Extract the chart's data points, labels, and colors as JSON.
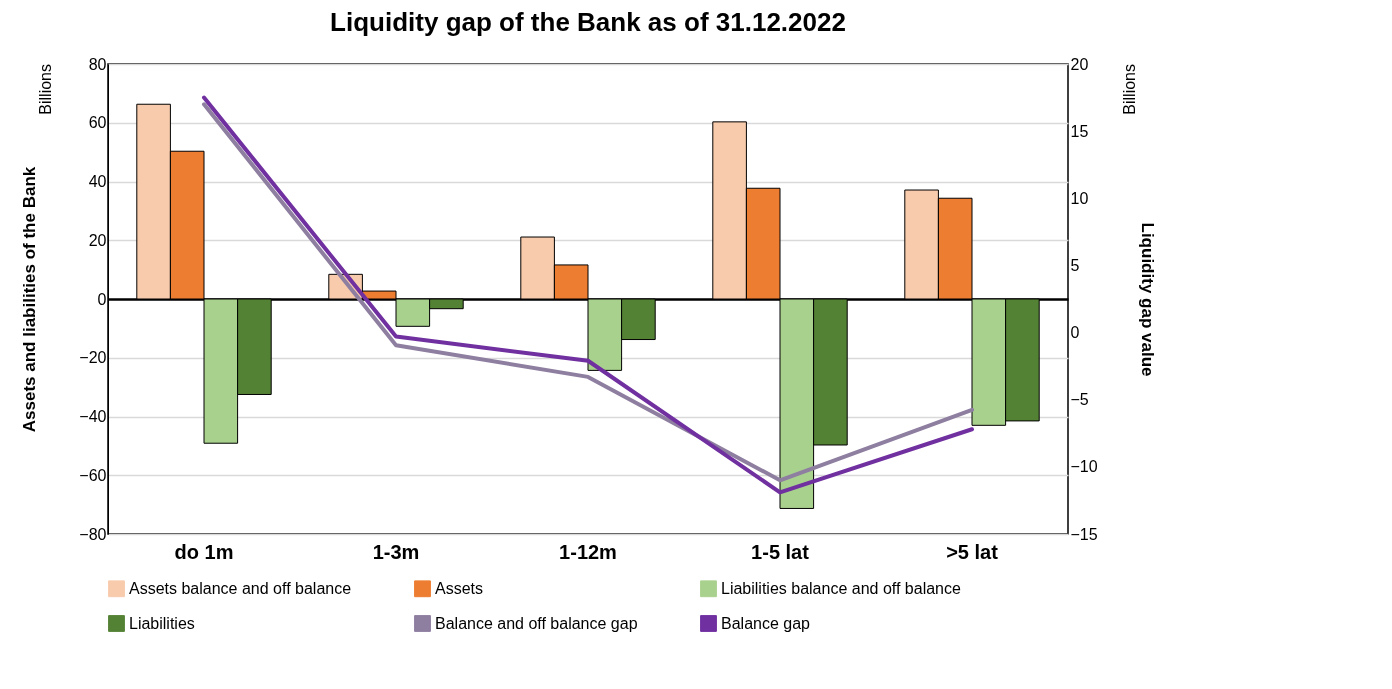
{
  "chart_data": {
    "type": "bar",
    "title": "Liquidity gap of the Bank as of 31.12.2022",
    "ylabel": "Assets and liabilities of the Bank",
    "y2label": "Liquidity gap value",
    "annotations": [
      "Billions",
      "Billions"
    ],
    "categories": [
      "do 1m",
      "1-3m",
      "1-12m",
      "1-5 lat",
      ">5 lat"
    ],
    "series": [
      {
        "name": "Assets balance and off balance",
        "color": "#f8cbad",
        "values": [
          66.3,
          8.4,
          21.1,
          60.3,
          37.1
        ]
      },
      {
        "name": "Assets",
        "color": "#ed7d31",
        "values": [
          50.3,
          2.7,
          11.6,
          37.7,
          34.3
        ]
      },
      {
        "name": "Liabilities balance and off balance",
        "color": "#a9d18e",
        "values": [
          -49.1,
          -9.3,
          -24.3,
          -71.3,
          -43.0
        ]
      },
      {
        "name": "Liabilities",
        "color": "#548235",
        "values": [
          -32.5,
          -3.3,
          -13.8,
          -49.7,
          -41.5
        ]
      },
      {
        "name": "Balance and off balance gap",
        "color": "#8e7ea0",
        "type": "line",
        "axis": "y2",
        "values": [
          17.0,
          -0.95,
          -3.3,
          -11.0,
          -5.75
        ]
      },
      {
        "name": "Balance gap",
        "color": "#7030a0",
        "type": "line",
        "axis": "y2",
        "values": [
          17.5,
          -0.3,
          -2.1,
          -11.9,
          -7.2
        ]
      }
    ],
    "ylim": [
      -80,
      80
    ],
    "yticks": [
      -80,
      -60,
      -40,
      -20,
      0,
      20,
      40,
      60,
      80
    ],
    "y2lim": [
      -15,
      20
    ],
    "y2ticks": [
      -15,
      -10,
      -5,
      0,
      5,
      10,
      15,
      20
    ],
    "grid": "y",
    "legend": "bottom"
  }
}
